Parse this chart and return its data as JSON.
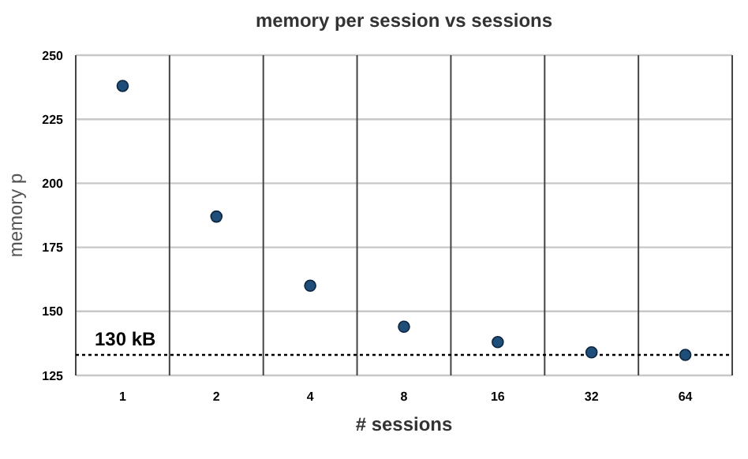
{
  "chart_data": {
    "type": "scatter",
    "title": "memory per session vs sessions",
    "xlabel": "# sessions",
    "ylabel": "memory p",
    "categories": [
      "1",
      "2",
      "4",
      "8",
      "16",
      "32",
      "64"
    ],
    "series": [
      {
        "color": "#1f4e79",
        "values": [
          238,
          187,
          160,
          144,
          138,
          134,
          133
        ]
      }
    ],
    "ylim": [
      125,
      250
    ],
    "yticks": [
      125,
      150,
      175,
      200,
      225,
      250
    ],
    "grid": true,
    "marker": "circle",
    "ref_lines": [
      {
        "axis": "y",
        "value": 133,
        "label": "130 kB",
        "color": "#000000",
        "line_style": "dotted"
      }
    ]
  }
}
